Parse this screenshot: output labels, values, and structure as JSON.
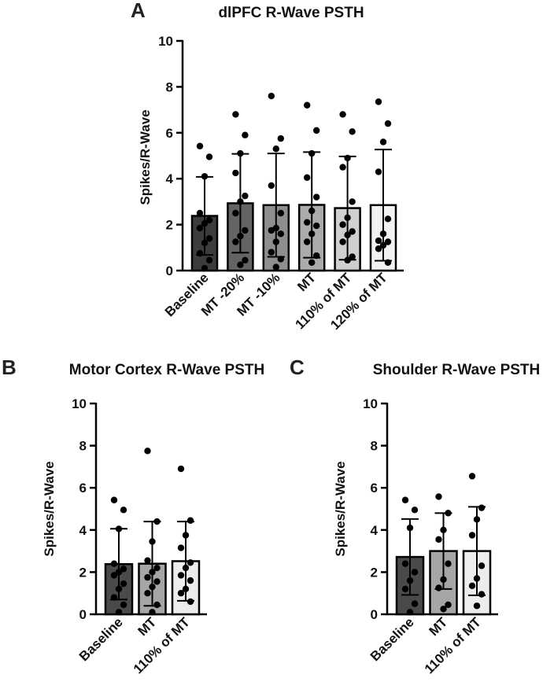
{
  "figure": {
    "panel_letters": [
      "A",
      "B",
      "C"
    ]
  },
  "chart_data": [
    {
      "type": "bar",
      "panel": "A",
      "title": "dlPFC R-Wave PSTH",
      "xlabel": "",
      "ylabel": "Spikes/R-Wave",
      "ylim": [
        0,
        10
      ],
      "yticks": [
        0,
        2,
        4,
        6,
        8,
        10
      ],
      "categories": [
        "Baseline",
        "MT -20%",
        "MT -10%",
        "MT",
        "110% of MT",
        "120% of MT"
      ],
      "values": [
        2.38,
        2.93,
        2.85,
        2.86,
        2.72,
        2.85
      ],
      "sd": [
        1.7,
        2.15,
        2.25,
        2.3,
        2.25,
        2.42
      ],
      "bar_colors": [
        "#3c3c3c",
        "#646464",
        "#8e8e8e",
        "#ababab",
        "#cfcfcf",
        "#f2f2f2"
      ],
      "points": [
        [
          5.42,
          4.95,
          4.1,
          2.5,
          2.2,
          2.05,
          1.85,
          1.4,
          1.2,
          0.75,
          0.45,
          0.1
        ],
        [
          6.8,
          5.9,
          5.1,
          4.25,
          3.25,
          3.0,
          2.5,
          1.75,
          1.5,
          1.25,
          0.45,
          0.25
        ],
        [
          7.6,
          5.75,
          5.3,
          3.7,
          2.5,
          1.85,
          1.75,
          1.6,
          1.25,
          0.8,
          0.5,
          0.15
        ],
        [
          7.2,
          6.1,
          5.1,
          4.05,
          3.2,
          2.6,
          2.1,
          1.95,
          1.6,
          1.25,
          0.65,
          0.35
        ],
        [
          6.8,
          6.05,
          4.9,
          4.5,
          3.0,
          2.3,
          2.0,
          1.7,
          1.55,
          1.25,
          0.6,
          0.45
        ],
        [
          7.35,
          6.4,
          5.6,
          4.3,
          2.25,
          1.6,
          1.3,
          1.25,
          1.1,
          0.95,
          0.35
        ]
      ]
    },
    {
      "type": "bar",
      "panel": "B",
      "title": "Motor Cortex R-Wave PSTH",
      "xlabel": "",
      "ylabel": "Spikes/R-Wave",
      "ylim": [
        0,
        10
      ],
      "yticks": [
        0,
        2,
        4,
        6,
        8,
        10
      ],
      "categories": [
        "Baseline",
        "MT",
        "110% of MT"
      ],
      "values": [
        2.38,
        2.4,
        2.52
      ],
      "sd": [
        1.68,
        2.0,
        1.88
      ],
      "bar_colors": [
        "#4a4a4a",
        "#a6a6a6",
        "#ededed"
      ],
      "points": [
        [
          5.42,
          4.95,
          4.05,
          2.4,
          2.15,
          2.0,
          1.85,
          1.45,
          1.2,
          0.8,
          0.45,
          0.1
        ],
        [
          7.75,
          4.4,
          3.45,
          2.55,
          2.2,
          2.0,
          1.75,
          1.55,
          1.3,
          1.0,
          0.45,
          0.1
        ],
        [
          6.9,
          4.45,
          3.75,
          3.15,
          2.45,
          2.2,
          1.85,
          1.6,
          1.2,
          1.0,
          0.6
        ]
      ]
    },
    {
      "type": "bar",
      "panel": "C",
      "title": "Shoulder R-Wave PSTH",
      "xlabel": "",
      "ylabel": "Spikes/R-Wave",
      "ylim": [
        0,
        10
      ],
      "yticks": [
        0,
        2,
        4,
        6,
        8,
        10
      ],
      "categories": [
        "Baseline",
        "MT",
        "110% of MT"
      ],
      "values": [
        2.72,
        3.0,
        3.0
      ],
      "sd": [
        1.8,
        1.8,
        2.1
      ],
      "bar_colors": [
        "#4a4a4a",
        "#a6a6a6",
        "#ededed"
      ],
      "points": [
        [
          5.42,
          4.95,
          4.1,
          2.4,
          2.0,
          1.6,
          1.2,
          0.5,
          0.1
        ],
        [
          5.58,
          4.8,
          4.0,
          3.55,
          2.4,
          1.65,
          1.25,
          0.45,
          0.25
        ],
        [
          6.55,
          5.05,
          4.5,
          3.75,
          2.3,
          1.7,
          1.35,
          0.95,
          0.4
        ]
      ]
    }
  ]
}
